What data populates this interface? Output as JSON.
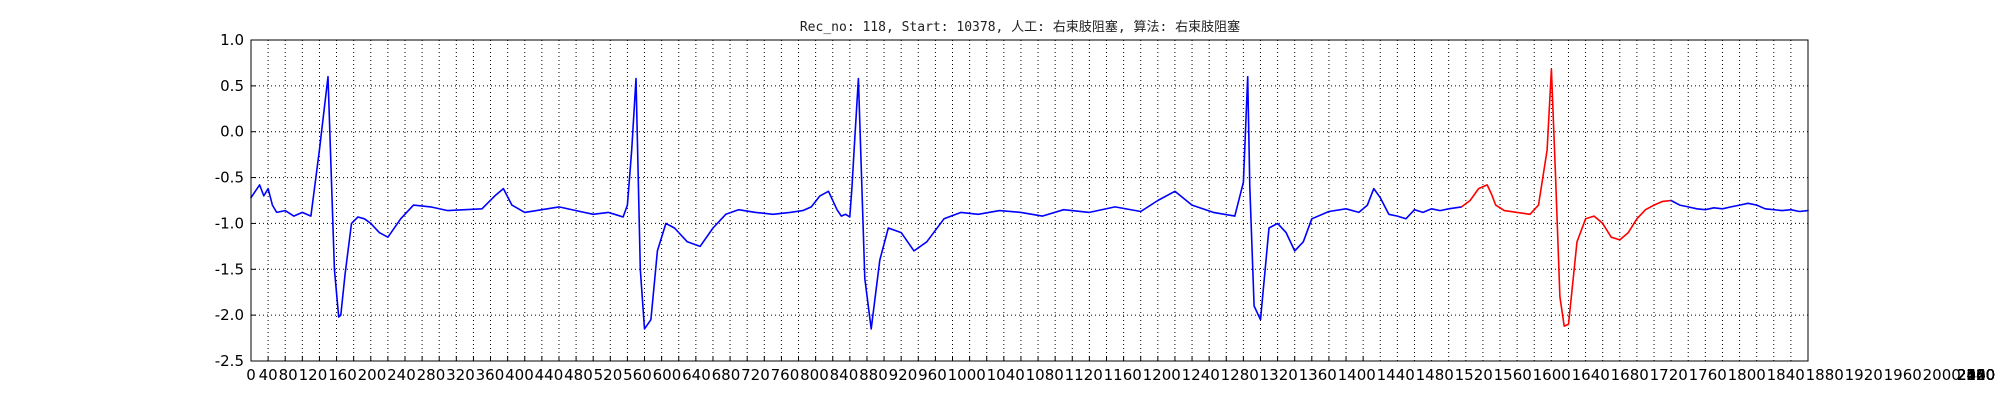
{
  "chart_data": {
    "type": "line",
    "title": "Rec_no: 118, Start: 10378, 人工: 右束肢阻塞, 算法: 右束肢阻塞",
    "xlabel": "",
    "ylabel": "",
    "xlim": [
      0,
      3640
    ],
    "ylim": [
      -2.5,
      1.0
    ],
    "grid": true,
    "y_ticks": [
      1.0,
      0.5,
      0.0,
      -0.5,
      -1.0,
      -1.5,
      -2.0,
      -2.5
    ],
    "y_tick_labels": [
      "1.0",
      "0.5",
      "0.0",
      "-0.5",
      "-1.0",
      "-1.5",
      "-2.0",
      "-2.5"
    ],
    "x_ticks": [
      0,
      40,
      80,
      120,
      160,
      200,
      240,
      280,
      320,
      360,
      400,
      440,
      480,
      520,
      560,
      600,
      640,
      680,
      720,
      760,
      800,
      840,
      880,
      920,
      960,
      1000,
      1040,
      1080,
      1120,
      1160,
      1200,
      1240,
      1280,
      1320,
      1360,
      1400,
      1440,
      1480,
      1520,
      1560,
      1600,
      1640,
      1680,
      1720,
      1760,
      1800,
      1840,
      1880,
      1920,
      1960,
      2000,
      2040,
      2080,
      2120,
      2160,
      2200,
      2240,
      2280,
      2320,
      2360,
      2400,
      2440,
      2480,
      2520,
      2560,
      2600
    ],
    "x_tick_labels": [
      "0",
      "40",
      "80",
      "120",
      "160",
      "200",
      "240",
      "280",
      "320",
      "360",
      "400",
      "440",
      "480",
      "520",
      "560",
      "600",
      "640",
      "680",
      "720",
      "760",
      "800",
      "840",
      "880",
      "920",
      "960",
      "1000",
      "1040",
      "1080",
      "1120",
      "1160",
      "1200",
      "1240",
      "1280",
      "1320",
      "1360",
      "1400",
      "1440",
      "1480",
      "1520",
      "1560",
      "1600",
      "1640",
      "1680",
      "1720",
      "1760",
      "1800",
      "1840",
      "1880",
      "1920",
      "1960",
      "2000",
      "2040",
      "2080",
      "2120",
      "2160",
      "2200",
      "2240",
      "2280",
      "2320",
      "2360",
      "2400",
      "2440",
      "2480",
      "2520",
      "2560",
      "2600"
    ],
    "vertical_grid_step": 40,
    "series": [
      {
        "color": "#0000ff",
        "x": [
          0,
          20,
          30,
          40,
          50,
          60,
          80,
          100,
          120,
          140,
          160,
          180,
          195,
          205,
          210,
          220,
          235,
          250,
          265,
          280,
          300,
          320,
          350,
          380,
          420,
          460,
          500,
          540,
          570,
          590,
          610,
          640,
          680,
          720,
          760,
          800,
          835,
          850,
          870,
          880,
          890,
          900,
          910,
          920,
          935,
          950,
          970,
          990,
          1020,
          1050,
          1080,
          1110,
          1140,
          1180,
          1220,
          1260,
          1290,
          1310,
          1330,
          1350,
          1370,
          1380,
          1390,
          1400,
          1405,
          1410,
          1420,
          1435,
          1450,
          1470,
          1490,
          1520,
          1550,
          1580,
          1620,
          1660,
          1700,
          1750,
          1800,
          1850,
          1900,
          1960,
          2020,
          2080,
          2120,
          2160,
          2200,
          2250,
          2300
        ],
        "y": [
          -0.72,
          -0.58,
          -0.7,
          -0.62,
          -0.8,
          -0.88,
          -0.86,
          -0.92,
          -0.88,
          -0.92,
          -0.2,
          0.6,
          -1.5,
          -2.02,
          -2.0,
          -1.55,
          -1.0,
          -0.93,
          -0.95,
          -1.0,
          -1.1,
          -1.15,
          -0.95,
          -0.8,
          -0.82,
          -0.86,
          -0.85,
          -0.84,
          -0.7,
          -0.62,
          -0.8,
          -0.88,
          -0.85,
          -0.82,
          -0.86,
          -0.9,
          -0.88,
          -0.9,
          -0.93,
          -0.8,
          -0.2,
          0.58,
          -1.5,
          -2.15,
          -2.05,
          -1.3,
          -1.0,
          -1.05,
          -1.2,
          -1.25,
          -1.05,
          -0.9,
          -0.85,
          -0.88,
          -0.9,
          -0.88,
          -0.86,
          -0.82,
          -0.7,
          -0.65,
          -0.85,
          -0.92,
          -0.9,
          -0.93,
          -0.6,
          -0.2,
          0.58,
          -1.6,
          -2.15,
          -1.4,
          -1.05,
          -1.1,
          -1.3,
          -1.2,
          -0.95,
          -0.88,
          -0.9,
          -0.86,
          -0.88,
          -0.92,
          -0.85,
          -0.88,
          -0.82,
          -0.87,
          -0.75,
          -0.65,
          -0.8,
          -0.88,
          -0.92
        ]
      },
      {
        "color": "#0000ff",
        "x": [
          2300,
          2320,
          2330,
          2335,
          2345,
          2360,
          2380,
          2400,
          2420,
          2440,
          2460,
          2480,
          2520,
          2560,
          2590,
          2610,
          2625,
          2640,
          2660,
          2680,
          2700,
          2720,
          2740,
          2760,
          2780,
          2800,
          2830
        ],
        "y": [
          -0.92,
          -0.55,
          0.6,
          -0.6,
          -1.9,
          -2.05,
          -1.05,
          -1.0,
          -1.1,
          -1.3,
          -1.2,
          -0.95,
          -0.87,
          -0.84,
          -0.88,
          -0.8,
          -0.62,
          -0.72,
          -0.9,
          -0.92,
          -0.95,
          -0.85,
          -0.88,
          -0.84,
          -0.86,
          -0.84,
          -0.82
        ]
      },
      {
        "color": "#ff0000",
        "x": [
          2830,
          2850,
          2870,
          2890,
          2900,
          2910,
          2930,
          2960,
          2990,
          3010,
          3030,
          3040,
          3050,
          3060,
          3070,
          3080,
          3100,
          3120,
          3140,
          3160,
          3180,
          3200,
          3220,
          3240,
          3260,
          3280,
          3300,
          3320
        ],
        "y": [
          -0.82,
          -0.75,
          -0.62,
          -0.58,
          -0.68,
          -0.8,
          -0.86,
          -0.88,
          -0.9,
          -0.8,
          -0.2,
          0.68,
          -0.5,
          -1.8,
          -2.12,
          -2.1,
          -1.2,
          -0.95,
          -0.92,
          -1.0,
          -1.15,
          -1.18,
          -1.1,
          -0.95,
          -0.85,
          -0.8,
          -0.76,
          -0.75
        ]
      },
      {
        "color": "#0000ff",
        "x": [
          3320,
          3340,
          3360,
          3380,
          3400,
          3420,
          3440,
          3460,
          3480,
          3500,
          3520,
          3540,
          3560,
          3580,
          3600,
          3620,
          3640
        ],
        "y": [
          -0.75,
          -0.8,
          -0.82,
          -0.84,
          -0.85,
          -0.83,
          -0.84,
          -0.82,
          -0.8,
          -0.78,
          -0.8,
          -0.84,
          -0.85,
          -0.86,
          -0.85,
          -0.87,
          -0.86
        ]
      }
    ]
  }
}
